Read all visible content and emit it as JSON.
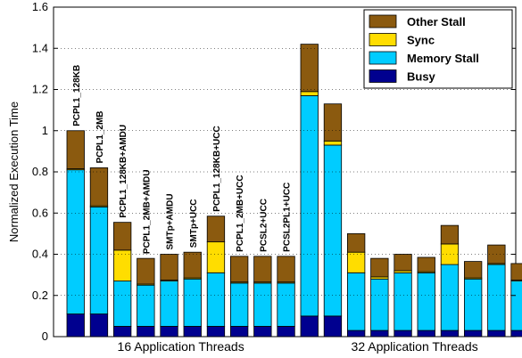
{
  "chart_data": {
    "type": "bar",
    "stacked": true,
    "ylabel": "Normalized Execution Time",
    "ylim": [
      0,
      1.6
    ],
    "yticks": [
      "0",
      "0.2",
      "0.4",
      "0.6",
      "0.8",
      "1",
      "1.2",
      "1.4",
      "1.6"
    ],
    "groups": [
      "16 Application Threads",
      "32 Application Threads"
    ],
    "categories": [
      "PCPL1_128KB",
      "PCPL1_2MB",
      "PCPL1_128KB+AMDU",
      "PCPL1_2MB+AMDU",
      "SMTp+AMDU",
      "SMTp+UCC",
      "PCPL1_128KB+UCC",
      "PCPL1_2MB+UCC",
      "PCSL2+UCC",
      "PCSL2PL1+UCC"
    ],
    "legend_position": "top-right",
    "series": [
      {
        "name": "Busy",
        "color": "#00008f",
        "group_values": [
          [
            0.11,
            0.11,
            0.05,
            0.05,
            0.05,
            0.05,
            0.05,
            0.05,
            0.05,
            0.05
          ],
          [
            0.1,
            0.1,
            0.03,
            0.03,
            0.03,
            0.03,
            0.03,
            0.03,
            0.03,
            0.03
          ]
        ]
      },
      {
        "name": "Memory Stall",
        "color": "#00ccff",
        "group_values": [
          [
            0.7,
            0.52,
            0.22,
            0.2,
            0.22,
            0.23,
            0.26,
            0.21,
            0.21,
            0.21
          ],
          [
            1.07,
            0.83,
            0.28,
            0.25,
            0.28,
            0.28,
            0.32,
            0.25,
            0.32,
            0.24
          ]
        ]
      },
      {
        "name": "Sync",
        "color": "#ffdd00",
        "group_values": [
          [
            0.005,
            0.005,
            0.15,
            0.005,
            0.005,
            0.005,
            0.15,
            0.005,
            0.005,
            0.005
          ],
          [
            0.02,
            0.02,
            0.1,
            0.01,
            0.01,
            0.005,
            0.1,
            0.005,
            0.005,
            0.005
          ]
        ]
      },
      {
        "name": "Other Stall",
        "color": "#8b5a0f",
        "group_values": [
          [
            0.185,
            0.185,
            0.135,
            0.125,
            0.125,
            0.125,
            0.125,
            0.125,
            0.125,
            0.125
          ],
          [
            0.23,
            0.18,
            0.09,
            0.09,
            0.08,
            0.07,
            0.09,
            0.08,
            0.09,
            0.08
          ]
        ]
      }
    ]
  }
}
